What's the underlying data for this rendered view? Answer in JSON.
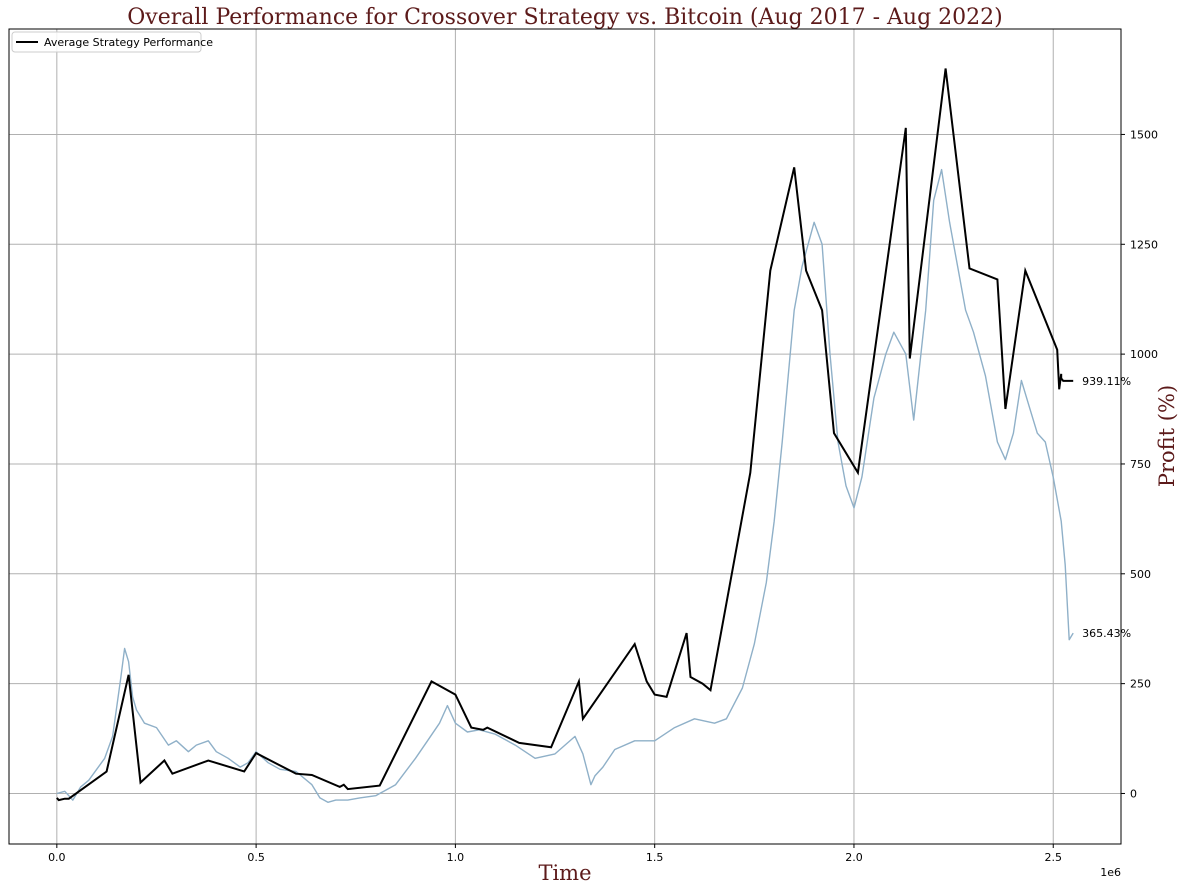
{
  "chart_data": {
    "type": "line",
    "title": "Overall Performance for Crossover Strategy vs. Bitcoin (Aug 2017 - Aug 2022)",
    "xlabel": "Time",
    "ylabel": "Profit (%)",
    "x_offset_label": "1e6",
    "xlim": [
      -0.12,
      2.67
    ],
    "ylim": [
      -115,
      1740
    ],
    "x_ticks": [
      0.0,
      0.5,
      1.0,
      1.5,
      2.0,
      2.5
    ],
    "x_tick_labels": [
      "0.0",
      "0.5",
      "1.0",
      "1.5",
      "2.0",
      "2.5"
    ],
    "y_ticks": [
      0,
      250,
      500,
      750,
      1000,
      1250,
      1500
    ],
    "y_tick_labels": [
      "0",
      "250",
      "500",
      "750",
      "1000",
      "1250",
      "1500"
    ],
    "grid": true,
    "legend_position": "top-left",
    "colors": {
      "strategy": "#000000",
      "bitcoin": "#8fb0c8",
      "title": "#5c1a1a"
    },
    "series": [
      {
        "name": "Average Strategy Performance",
        "style": "black-line",
        "x": [
          0,
          0.005,
          0.02,
          0.03,
          0.125,
          0.18,
          0.21,
          0.27,
          0.29,
          0.38,
          0.47,
          0.5,
          0.6,
          0.64,
          0.71,
          0.72,
          0.73,
          0.81,
          0.94,
          1.0,
          1.04,
          1.07,
          1.08,
          1.16,
          1.24,
          1.31,
          1.32,
          1.45,
          1.48,
          1.5,
          1.53,
          1.58,
          1.59,
          1.62,
          1.64,
          1.74,
          1.79,
          1.85,
          1.88,
          1.92,
          1.95,
          2.01,
          2.13,
          2.14,
          2.23,
          2.29,
          2.36,
          2.38,
          2.43,
          2.51,
          2.515,
          2.52,
          2.52,
          2.525,
          2.55
        ],
        "y": [
          -10,
          -15,
          -12,
          -12,
          50,
          270,
          25,
          75,
          45,
          75,
          50,
          92,
          45,
          42,
          15,
          20,
          10,
          18,
          255,
          225,
          150,
          145,
          150,
          115,
          105,
          255,
          170,
          340,
          255,
          225,
          220,
          365,
          265,
          250,
          235,
          730,
          1190,
          1425,
          1190,
          1100,
          820,
          730,
          1515,
          990,
          1650,
          1195,
          1170,
          875,
          1190,
          1010,
          920,
          955,
          945,
          939,
          939
        ]
      },
      {
        "name": "",
        "style": "bitcoin-line",
        "x": [
          0,
          0.02,
          0.04,
          0.06,
          0.08,
          0.1,
          0.12,
          0.14,
          0.16,
          0.17,
          0.18,
          0.19,
          0.2,
          0.22,
          0.25,
          0.28,
          0.3,
          0.33,
          0.35,
          0.38,
          0.4,
          0.43,
          0.46,
          0.48,
          0.5,
          0.53,
          0.56,
          0.6,
          0.64,
          0.66,
          0.68,
          0.7,
          0.73,
          0.76,
          0.8,
          0.85,
          0.9,
          0.93,
          0.96,
          0.98,
          1.0,
          1.03,
          1.06,
          1.1,
          1.15,
          1.2,
          1.25,
          1.3,
          1.32,
          1.34,
          1.35,
          1.37,
          1.4,
          1.45,
          1.5,
          1.55,
          1.6,
          1.65,
          1.68,
          1.72,
          1.75,
          1.78,
          1.8,
          1.82,
          1.84,
          1.85,
          1.87,
          1.9,
          1.92,
          1.94,
          1.96,
          1.98,
          2.0,
          2.02,
          2.05,
          2.08,
          2.1,
          2.13,
          2.15,
          2.18,
          2.2,
          2.22,
          2.24,
          2.26,
          2.28,
          2.3,
          2.33,
          2.36,
          2.38,
          2.4,
          2.42,
          2.44,
          2.46,
          2.48,
          2.5,
          2.52,
          2.53,
          2.54,
          2.55
        ],
        "y": [
          0,
          5,
          -15,
          15,
          30,
          55,
          80,
          130,
          260,
          330,
          300,
          220,
          190,
          160,
          150,
          110,
          120,
          95,
          110,
          120,
          95,
          80,
          60,
          70,
          95,
          70,
          55,
          50,
          20,
          -10,
          -20,
          -15,
          -15,
          -10,
          -5,
          20,
          80,
          120,
          160,
          200,
          160,
          140,
          145,
          135,
          110,
          80,
          90,
          130,
          90,
          20,
          40,
          60,
          100,
          120,
          120,
          150,
          170,
          160,
          170,
          240,
          340,
          480,
          620,
          800,
          1000,
          1100,
          1200,
          1300,
          1250,
          1000,
          800,
          700,
          650,
          720,
          900,
          1000,
          1050,
          1000,
          850,
          1100,
          1350,
          1420,
          1300,
          1200,
          1100,
          1050,
          950,
          800,
          760,
          820,
          940,
          880,
          820,
          800,
          720,
          620,
          520,
          350,
          365
        ]
      }
    ],
    "annotations": [
      {
        "text": "939.11%",
        "x": 2.55,
        "y": 939
      },
      {
        "text": "365.43%",
        "x": 2.55,
        "y": 365
      }
    ]
  }
}
